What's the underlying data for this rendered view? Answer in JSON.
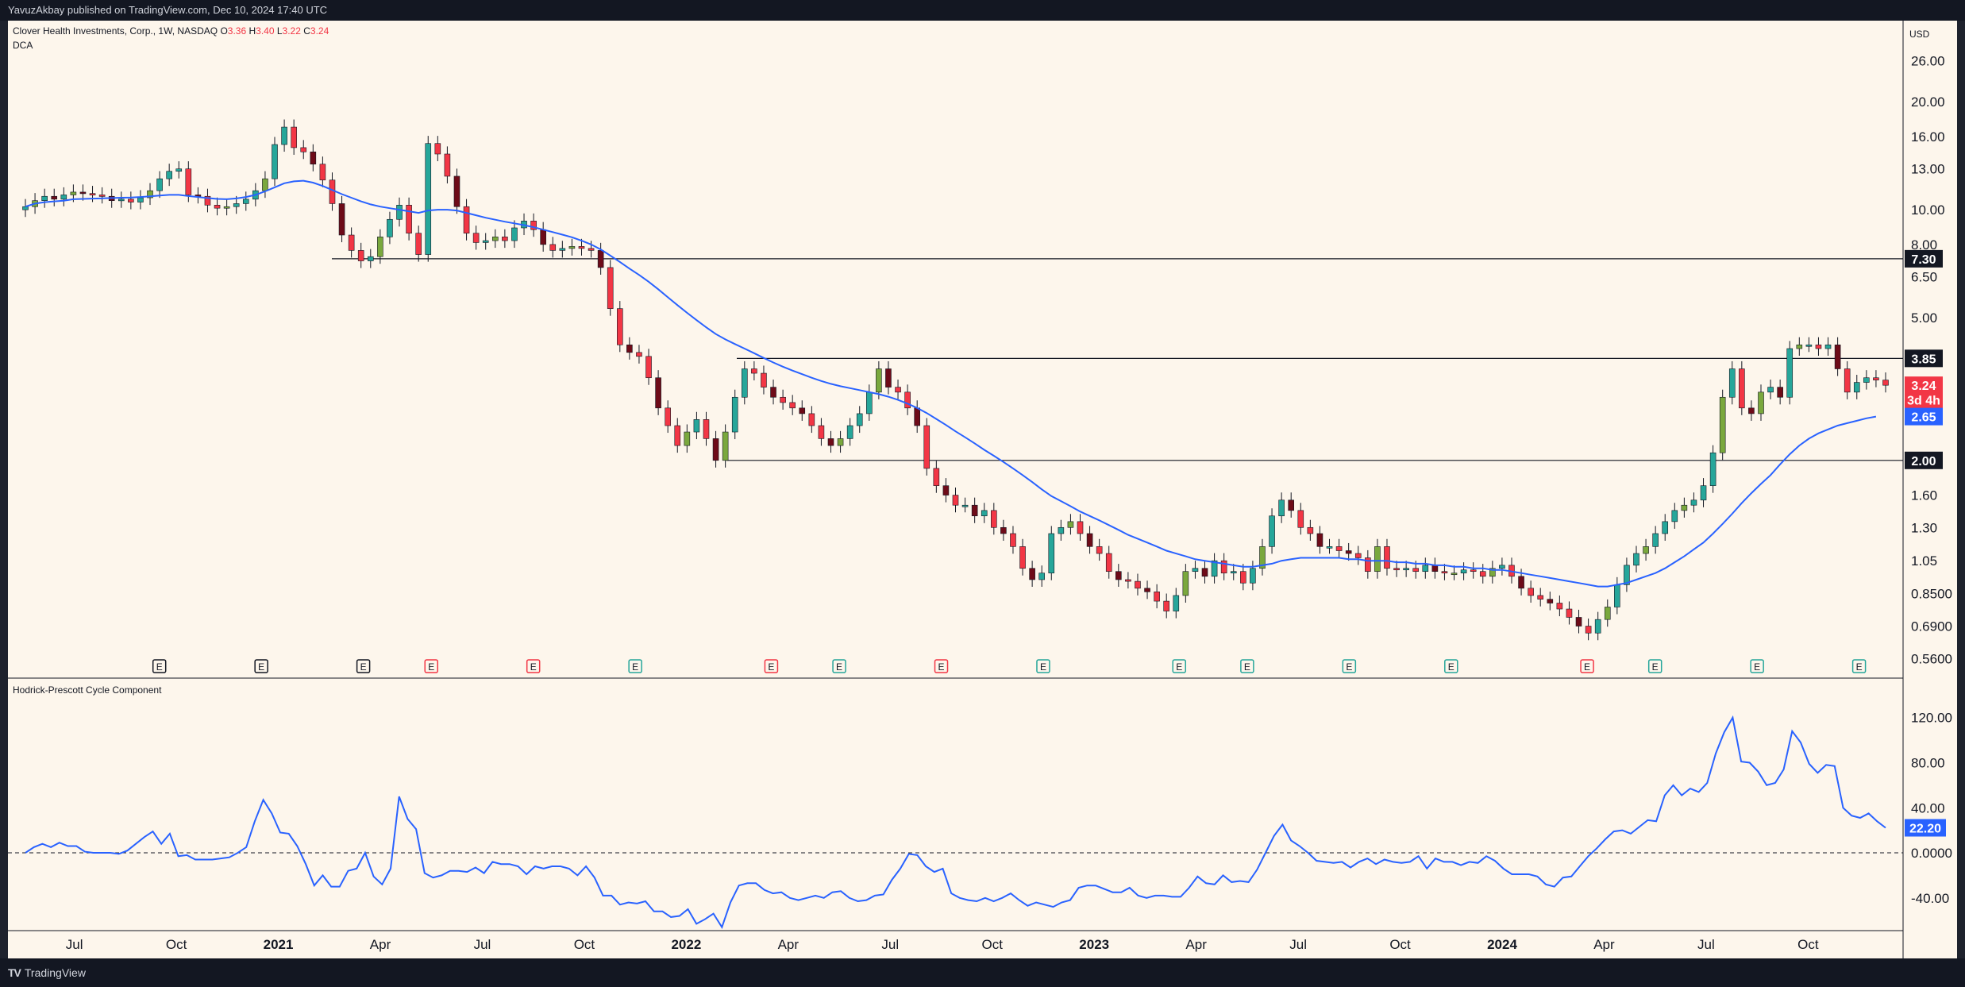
{
  "header": {
    "publisher": "YavuzAkbay published on TradingView.com, Dec 10, 2024 17:40 UTC",
    "symbol": "Clover Health Investments, Corp., 1W, NASDAQ",
    "ohlc": {
      "o_label": "O",
      "o_value": "3.36",
      "h_label": "H",
      "h_value": "3.40",
      "l_label": "L",
      "l_value": "3.22",
      "c_label": "C",
      "c_value": "3.24"
    },
    "indicator": "DCA",
    "currency": "USD"
  },
  "footer": {
    "brand": "TradingView",
    "logo_mark": "TV"
  },
  "colors": {
    "background": "#fdf6ec",
    "up": "#26a69a",
    "up_alt": "#7aa83d",
    "down": "#f23645",
    "down_dark": "#6e0b18",
    "ma": "#2962ff",
    "hline": "#131722",
    "earnings_up": "#26a69a",
    "earnings_down": "#f23645",
    "earnings_neutral": "#131722"
  },
  "chart_data": [
    {
      "type": "candlestick",
      "title": "Clover Health Investments, Corp., 1W, NASDAQ",
      "y_scale": "log",
      "ylim": [
        0.52,
        32
      ],
      "y_ticks": [
        "26.00",
        "20.00",
        "16.00",
        "13.00",
        "10.00",
        "8.00",
        "6.50",
        "5.00",
        "1.60",
        "1.30",
        "1.05",
        "0.8500",
        "0.6900",
        "0.5600"
      ],
      "x_ticks": [
        "Jul",
        "Oct",
        "2021",
        "Apr",
        "Jul",
        "Oct",
        "2022",
        "Apr",
        "Jul",
        "Oct",
        "2023",
        "Apr",
        "Jul",
        "Oct",
        "2024",
        "Apr",
        "Jul",
        "Oct"
      ],
      "close_series": [
        10.2,
        10.6,
        10.9,
        10.7,
        11.0,
        11.2,
        11.1,
        11.0,
        10.9,
        10.6,
        10.7,
        10.5,
        10.8,
        11.3,
        12.2,
        12.8,
        13.0,
        11.0,
        10.9,
        10.3,
        10.1,
        10.2,
        10.4,
        10.7,
        11.3,
        12.2,
        15.2,
        17.0,
        14.9,
        14.5,
        13.4,
        12.1,
        10.4,
        8.5,
        7.7,
        7.2,
        7.4,
        8.4,
        9.4,
        10.3,
        8.6,
        7.5,
        15.3,
        14.3,
        12.4,
        10.2,
        8.6,
        8.1,
        8.2,
        8.4,
        8.2,
        8.9,
        9.3,
        8.8,
        8.0,
        7.7,
        7.8,
        7.9,
        7.8,
        7.7,
        6.9,
        5.3,
        4.2,
        4.0,
        3.9,
        3.4,
        2.8,
        2.5,
        2.2,
        2.4,
        2.6,
        2.3,
        2.0,
        2.4,
        3.0,
        3.6,
        3.5,
        3.2,
        3.0,
        2.9,
        2.8,
        2.7,
        2.5,
        2.3,
        2.2,
        2.3,
        2.5,
        2.7,
        3.1,
        3.6,
        3.2,
        3.1,
        2.8,
        2.5,
        1.9,
        1.7,
        1.6,
        1.5,
        1.5,
        1.4,
        1.45,
        1.3,
        1.25,
        1.15,
        1.0,
        0.93,
        0.97,
        1.25,
        1.3,
        1.35,
        1.25,
        1.15,
        1.1,
        0.98,
        0.93,
        0.92,
        0.88,
        0.86,
        0.81,
        0.76,
        0.84,
        0.98,
        1.0,
        0.95,
        1.05,
        0.97,
        0.98,
        0.91,
        1.0,
        1.15,
        1.4,
        1.55,
        1.45,
        1.3,
        1.25,
        1.15,
        1.15,
        1.12,
        1.1,
        1.07,
        0.98,
        1.15,
        1.0,
        0.99,
        1.0,
        0.98,
        1.02,
        0.98,
        0.97,
        0.97,
        0.99,
        0.98,
        0.95,
        1.0,
        1.02,
        0.95,
        0.88,
        0.84,
        0.82,
        0.8,
        0.77,
        0.73,
        0.69,
        0.66,
        0.72,
        0.78,
        0.9,
        1.02,
        1.1,
        1.15,
        1.25,
        1.35,
        1.45,
        1.5,
        1.55,
        1.7,
        2.1,
        3.0,
        3.6,
        2.8,
        2.7,
        3.1,
        3.2,
        3.0,
        4.1,
        4.2,
        4.2,
        4.1,
        4.2,
        3.6,
        3.1,
        3.3,
        3.4,
        3.35,
        3.24
      ],
      "ma_series": [
        10.2,
        10.4,
        10.5,
        10.55,
        10.6,
        10.7,
        10.72,
        10.74,
        10.76,
        10.78,
        10.8,
        10.82,
        10.85,
        10.9,
        10.95,
        11.0,
        11.0,
        10.92,
        10.85,
        10.78,
        10.72,
        10.7,
        10.75,
        10.85,
        11.0,
        11.25,
        11.55,
        11.85,
        12.0,
        12.05,
        11.9,
        11.65,
        11.35,
        11.05,
        10.8,
        10.55,
        10.35,
        10.2,
        10.1,
        10.0,
        9.9,
        9.8,
        9.95,
        10.0,
        10.0,
        9.95,
        9.8,
        9.65,
        9.5,
        9.38,
        9.26,
        9.16,
        9.06,
        8.94,
        8.8,
        8.66,
        8.52,
        8.38,
        8.2,
        8.0,
        7.75,
        7.45,
        7.15,
        6.85,
        6.58,
        6.3,
        6.0,
        5.7,
        5.42,
        5.16,
        4.92,
        4.7,
        4.5,
        4.35,
        4.22,
        4.1,
        3.98,
        3.86,
        3.75,
        3.65,
        3.56,
        3.48,
        3.4,
        3.33,
        3.27,
        3.22,
        3.18,
        3.14,
        3.1,
        3.06,
        3.01,
        2.95,
        2.88,
        2.8,
        2.71,
        2.61,
        2.51,
        2.41,
        2.32,
        2.23,
        2.14,
        2.06,
        1.98,
        1.9,
        1.82,
        1.74,
        1.66,
        1.59,
        1.54,
        1.49,
        1.44,
        1.4,
        1.36,
        1.32,
        1.28,
        1.24,
        1.21,
        1.18,
        1.15,
        1.12,
        1.1,
        1.08,
        1.06,
        1.05,
        1.04,
        1.03,
        1.02,
        1.01,
        1.01,
        1.02,
        1.03,
        1.05,
        1.06,
        1.07,
        1.07,
        1.07,
        1.07,
        1.07,
        1.06,
        1.06,
        1.05,
        1.05,
        1.05,
        1.04,
        1.04,
        1.03,
        1.03,
        1.02,
        1.02,
        1.01,
        1.01,
        1.0,
        1.0,
        0.99,
        0.99,
        0.98,
        0.97,
        0.96,
        0.95,
        0.94,
        0.93,
        0.92,
        0.91,
        0.9,
        0.89,
        0.89,
        0.9,
        0.91,
        0.93,
        0.95,
        0.97,
        1.0,
        1.04,
        1.08,
        1.13,
        1.18,
        1.25,
        1.33,
        1.42,
        1.52,
        1.62,
        1.72,
        1.82,
        1.95,
        2.08,
        2.2,
        2.3,
        2.38,
        2.44,
        2.5,
        2.54,
        2.58,
        2.62,
        2.65
      ],
      "ma_label": "DCA",
      "horizontal_levels": [
        "7.30",
        "3.85",
        "2.00"
      ],
      "price_badges": [
        {
          "label": "7.30",
          "value": 7.3,
          "color": "#131722"
        },
        {
          "label": "3.85",
          "value": 3.85,
          "color": "#131722"
        },
        {
          "label": "3.24",
          "value": 3.24,
          "color": "#f23645"
        },
        {
          "label": "3d 4h",
          "value": 2.95,
          "color": "#f23645"
        },
        {
          "label": "2.65",
          "value": 2.65,
          "color": "#2962ff"
        },
        {
          "label": "2.00",
          "value": 2.0,
          "color": "#131722"
        }
      ],
      "earnings_markers": [
        {
          "label": "E",
          "kind": "neutral",
          "date": "2020-09"
        },
        {
          "label": "E",
          "kind": "neutral",
          "date": "2020-12"
        },
        {
          "label": "E",
          "kind": "neutral",
          "date": "2021-03"
        },
        {
          "label": "E",
          "kind": "down",
          "date": "2021-05"
        },
        {
          "label": "E",
          "kind": "down",
          "date": "2021-08"
        },
        {
          "label": "E",
          "kind": "up",
          "date": "2021-11"
        },
        {
          "label": "E",
          "kind": "down",
          "date": "2022-03"
        },
        {
          "label": "E",
          "kind": "up",
          "date": "2022-05"
        },
        {
          "label": "E",
          "kind": "down",
          "date": "2022-08"
        },
        {
          "label": "E",
          "kind": "up",
          "date": "2022-11"
        },
        {
          "label": "E",
          "kind": "up",
          "date": "2023-03"
        },
        {
          "label": "E",
          "kind": "up",
          "date": "2023-05"
        },
        {
          "label": "E",
          "kind": "up",
          "date": "2023-08"
        },
        {
          "label": "E",
          "kind": "up",
          "date": "2023-11"
        },
        {
          "label": "E",
          "kind": "down",
          "date": "2024-03"
        },
        {
          "label": "E",
          "kind": "up",
          "date": "2024-05"
        },
        {
          "label": "E",
          "kind": "up",
          "date": "2024-08"
        },
        {
          "label": "E",
          "kind": "up",
          "date": "2024-11"
        }
      ]
    },
    {
      "type": "line",
      "title": "Hodrick-Prescott Cycle Component",
      "ylim": [
        -62,
        148
      ],
      "y_ticks": [
        "120.00",
        "80.00",
        "40.00",
        "0.0000",
        "-40.00"
      ],
      "zero_line": "dashed",
      "last_value_label": "22.20",
      "values": [
        0,
        5,
        8,
        5,
        9,
        6,
        6,
        1,
        0,
        0,
        0,
        -1,
        2,
        8,
        14,
        19,
        8,
        17,
        -3,
        -2,
        -6,
        -6,
        -6,
        -5,
        -4,
        0,
        5,
        28,
        47,
        35,
        18,
        17,
        6,
        -10,
        -29,
        -20,
        -30,
        -30,
        -16,
        -14,
        0,
        -21,
        -28,
        -14,
        50,
        30,
        21,
        -18,
        -22,
        -20,
        -16,
        -16,
        -17,
        -13,
        -18,
        -8,
        -10,
        -10,
        -12,
        -19,
        -12,
        -14,
        -12,
        -12,
        -14,
        -20,
        -12,
        -22,
        -38,
        -38,
        -46,
        -44,
        -45,
        -43,
        -52,
        -52,
        -57,
        -56,
        -50,
        -63,
        -59,
        -54,
        -66,
        -44,
        -29,
        -27,
        -27,
        -33,
        -36,
        -35,
        -40,
        -42,
        -40,
        -38,
        -40,
        -35,
        -34,
        -40,
        -43,
        -42,
        -38,
        -37,
        -24,
        -14,
        -1,
        -2,
        -12,
        -17,
        -14,
        -36,
        -40,
        -42,
        -43,
        -40,
        -43,
        -40,
        -36,
        -42,
        -47,
        -44,
        -46,
        -48,
        -44,
        -42,
        -31,
        -29,
        -29,
        -32,
        -35,
        -35,
        -31,
        -38,
        -40,
        -38,
        -38,
        -39,
        -39,
        -31,
        -21,
        -27,
        -28,
        -20,
        -26,
        -25,
        -26,
        -15,
        0,
        15,
        25,
        11,
        6,
        0,
        -7,
        -8,
        -9,
        -8,
        -13,
        -8,
        -5,
        -10,
        -6,
        -8,
        -9,
        -8,
        -3,
        -14,
        -5,
        -8,
        -8,
        -11,
        -8,
        -9,
        -3,
        -7,
        -14,
        -19,
        -19,
        -19,
        -21,
        -28,
        -30,
        -22,
        -21,
        -12,
        -3,
        4,
        12,
        19,
        20,
        17,
        23,
        29,
        28,
        51,
        60,
        51,
        57,
        54,
        62,
        88,
        107,
        120,
        81,
        80,
        72,
        60,
        62,
        74,
        108,
        98,
        79,
        71,
        78,
        77,
        40,
        33,
        31,
        35,
        28,
        22.2
      ]
    }
  ]
}
